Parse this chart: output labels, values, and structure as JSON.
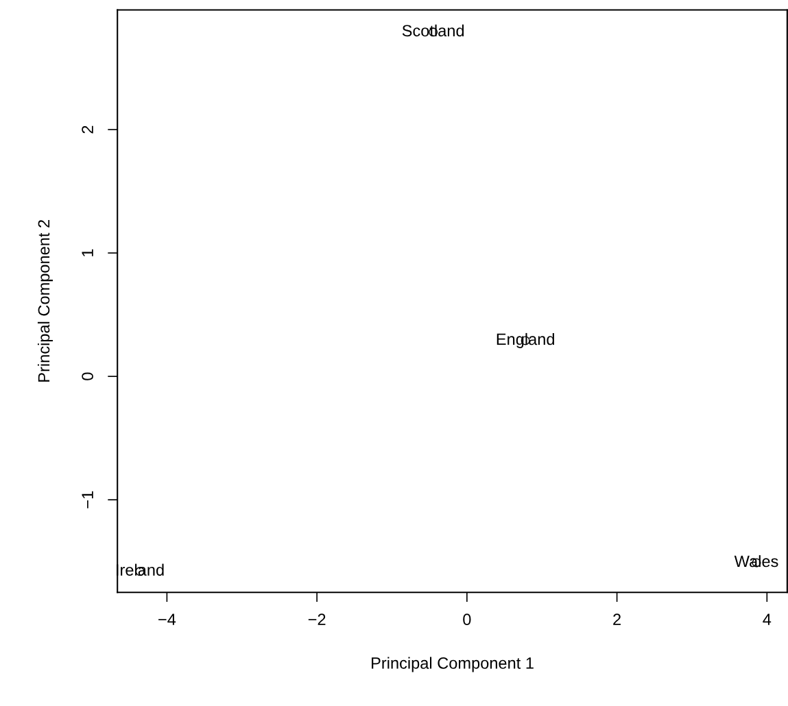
{
  "chart_data": {
    "type": "scatter",
    "xlabel": "Principal Component 1",
    "ylabel": "Principal Component 2",
    "x": [
      -0.45,
      0.78,
      -4.36,
      3.86
    ],
    "series": [
      {
        "color": "#000000",
        "values": [
          2.79,
          0.29,
          -1.58,
          -1.51
        ]
      }
    ],
    "marker": "circle",
    "grid": false,
    "legend": false,
    "xlim": [
      -4.66,
      4.27
    ],
    "ylim": [
      -1.75,
      2.97
    ],
    "xticks": [
      {
        "value": -4,
        "label": "−4"
      },
      {
        "value": -2,
        "label": "−2"
      },
      0,
      2,
      4
    ],
    "yticks": [
      {
        "value": -1,
        "label": "−1"
      },
      0,
      1,
      2
    ],
    "annotations": [
      {
        "text": "Scotland",
        "x": -0.45,
        "y": 2.79
      },
      {
        "text": "England",
        "x": 0.78,
        "y": 0.29
      },
      {
        "text": "Ireland",
        "x": -4.36,
        "y": -1.58
      },
      {
        "text": "Wales",
        "x": 3.86,
        "y": -1.51
      }
    ]
  }
}
